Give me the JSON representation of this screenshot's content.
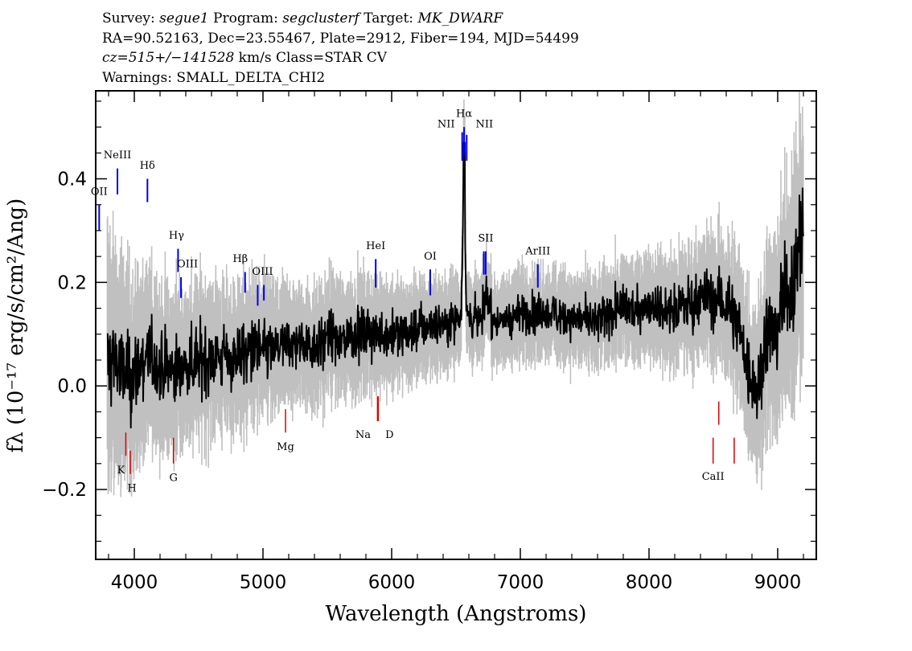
{
  "header": {
    "line1": {
      "survey_label": "Survey:",
      "survey": "segue1",
      "program_label": "Program:",
      "program": "segclusterf",
      "target_label": "Target:",
      "target": "MK_DWARF"
    },
    "line2": "RA=90.52163, Dec=23.55467, Plate=2912, Fiber=194, MJD=54499",
    "line3": {
      "cz": "cz=515+/−141528",
      "rest": " km/s Class=STAR CV"
    },
    "line4": "Warnings: SMALL_DELTA_CHI2"
  },
  "colors": {
    "flux": "#000000",
    "error": "#c0c0c0",
    "emission_marker": "#0000ee",
    "absorption_marker": "#dd0000"
  },
  "chart_data": {
    "type": "line",
    "xlabel": "Wavelength (Angstroms)",
    "ylabel": "fλ (10⁻¹⁷ erg/s/cm²/Ang)",
    "xlim": [
      3700,
      9300
    ],
    "ylim": [
      -0.335,
      0.57
    ],
    "xticks": [
      4000,
      5000,
      6000,
      7000,
      8000,
      9000
    ],
    "xtick_labels": [
      "4000",
      "5000",
      "6000",
      "7000",
      "8000",
      "9000"
    ],
    "yticks": [
      -0.2,
      0.0,
      0.2,
      0.4
    ],
    "ytick_labels": [
      "−0.2",
      "0.0",
      "0.2",
      "0.4"
    ],
    "series": [
      {
        "role": "flux",
        "x": [
          3790,
          3850,
          3900,
          3950,
          4000,
          4100,
          4200,
          4300,
          4400,
          4500,
          4600,
          4700,
          4800,
          4900,
          5000,
          5100,
          5200,
          5300,
          5400,
          5500,
          5600,
          5700,
          5800,
          5900,
          6000,
          6100,
          6200,
          6300,
          6400,
          6500,
          6540,
          6563,
          6580,
          6600,
          6700,
          6731,
          6800,
          6900,
          7000,
          7100,
          7200,
          7300,
          7400,
          7500,
          7600,
          7700,
          7800,
          7900,
          8000,
          8100,
          8200,
          8300,
          8400,
          8500,
          8600,
          8700,
          8750,
          8800,
          8850,
          8900,
          9000,
          9100,
          9150,
          9200
        ],
        "y": [
          0.04,
          0.06,
          0.02,
          0.02,
          0.02,
          0.06,
          0.03,
          0.03,
          0.04,
          0.05,
          0.06,
          0.05,
          0.06,
          0.07,
          0.07,
          0.07,
          0.08,
          0.08,
          0.08,
          0.09,
          0.09,
          0.1,
          0.1,
          0.1,
          0.1,
          0.1,
          0.11,
          0.12,
          0.12,
          0.13,
          0.14,
          0.47,
          0.14,
          0.13,
          0.13,
          0.18,
          0.12,
          0.13,
          0.14,
          0.14,
          0.14,
          0.14,
          0.13,
          0.13,
          0.12,
          0.14,
          0.15,
          0.15,
          0.16,
          0.15,
          0.15,
          0.16,
          0.17,
          0.17,
          0.16,
          0.12,
          0.05,
          0.0,
          0.0,
          0.09,
          0.13,
          0.2,
          0.25,
          0.3
        ]
      },
      {
        "role": "error",
        "x": [
          3750,
          3850,
          3950,
          4100,
          4300,
          4500,
          4700,
          5000,
          5300,
          5600,
          6000,
          6500,
          7000,
          7500,
          8000,
          8400,
          8700,
          8900,
          9100,
          9200
        ],
        "y": [
          0.2,
          0.16,
          0.14,
          0.12,
          0.11,
          0.1,
          0.1,
          0.09,
          0.08,
          0.08,
          0.07,
          0.06,
          0.06,
          0.06,
          0.07,
          0.08,
          0.1,
          0.12,
          0.15,
          0.18
        ]
      }
    ],
    "emission_lines": [
      {
        "label": "OII",
        "x": 3727
      },
      {
        "label": "NeIII",
        "x": 3869
      },
      {
        "label": "Hδ",
        "x": 4102
      },
      {
        "label": "Hγ",
        "x": 4340
      },
      {
        "label": "OIII",
        "x": 4363
      },
      {
        "label": "Hβ",
        "x": 4861
      },
      {
        "label": "OIII",
        "x": 4959
      },
      {
        "label": "OIII",
        "x": 5007
      },
      {
        "label": "HeI",
        "x": 5876
      },
      {
        "label": "OI",
        "x": 6300
      },
      {
        "label": "NII",
        "x": 6548
      },
      {
        "label": "Hα",
        "x": 6563
      },
      {
        "label": "NII",
        "x": 6583
      },
      {
        "label": "SII",
        "x": 6716
      },
      {
        "label": "SII",
        "x": 6731
      },
      {
        "label": "ArIII",
        "x": 7136
      }
    ],
    "absorption_lines": [
      {
        "label": "K",
        "x": 3934
      },
      {
        "label": "H",
        "x": 3969
      },
      {
        "label": "G",
        "x": 4304
      },
      {
        "label": "Mg",
        "x": 5175
      },
      {
        "label": "Na",
        "x": 5890
      },
      {
        "label": "D",
        "x": 5896
      },
      {
        "label": "CaII",
        "x": 8498
      },
      {
        "label": "CaII",
        "x": 8542
      },
      {
        "label": "CaII",
        "x": 8662
      }
    ]
  }
}
